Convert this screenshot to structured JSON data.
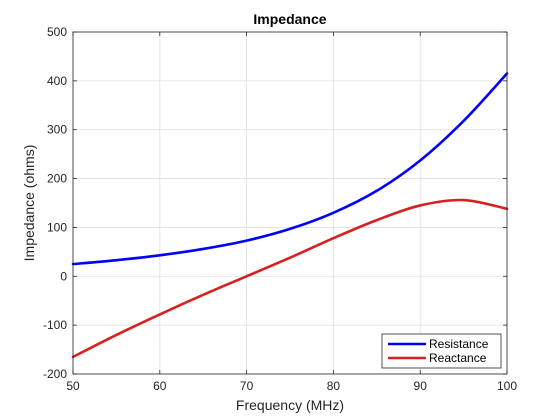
{
  "chart_data": {
    "type": "line",
    "title": "Impedance",
    "xlabel": "Frequency (MHz)",
    "ylabel": "Impedance (ohms)",
    "xlim": [
      50,
      100
    ],
    "ylim": [
      -200,
      500
    ],
    "xticks": [
      50,
      60,
      70,
      80,
      90,
      100
    ],
    "yticks": [
      -200,
      -100,
      0,
      100,
      200,
      300,
      400,
      500
    ],
    "grid": true,
    "legend_position": "bottom-right",
    "x": [
      50,
      55,
      60,
      65,
      70,
      75,
      80,
      85,
      90,
      95,
      100
    ],
    "series": [
      {
        "name": "Resistance",
        "color": "#0000ff",
        "values": [
          25,
          33,
          43,
          56,
          73,
          97,
          130,
          175,
          237,
          318,
          415
        ]
      },
      {
        "name": "Reactance",
        "color": "#d92020",
        "values": [
          -165,
          -120,
          -78,
          -38,
          0,
          38,
          78,
          115,
          145,
          156,
          138
        ]
      }
    ]
  }
}
